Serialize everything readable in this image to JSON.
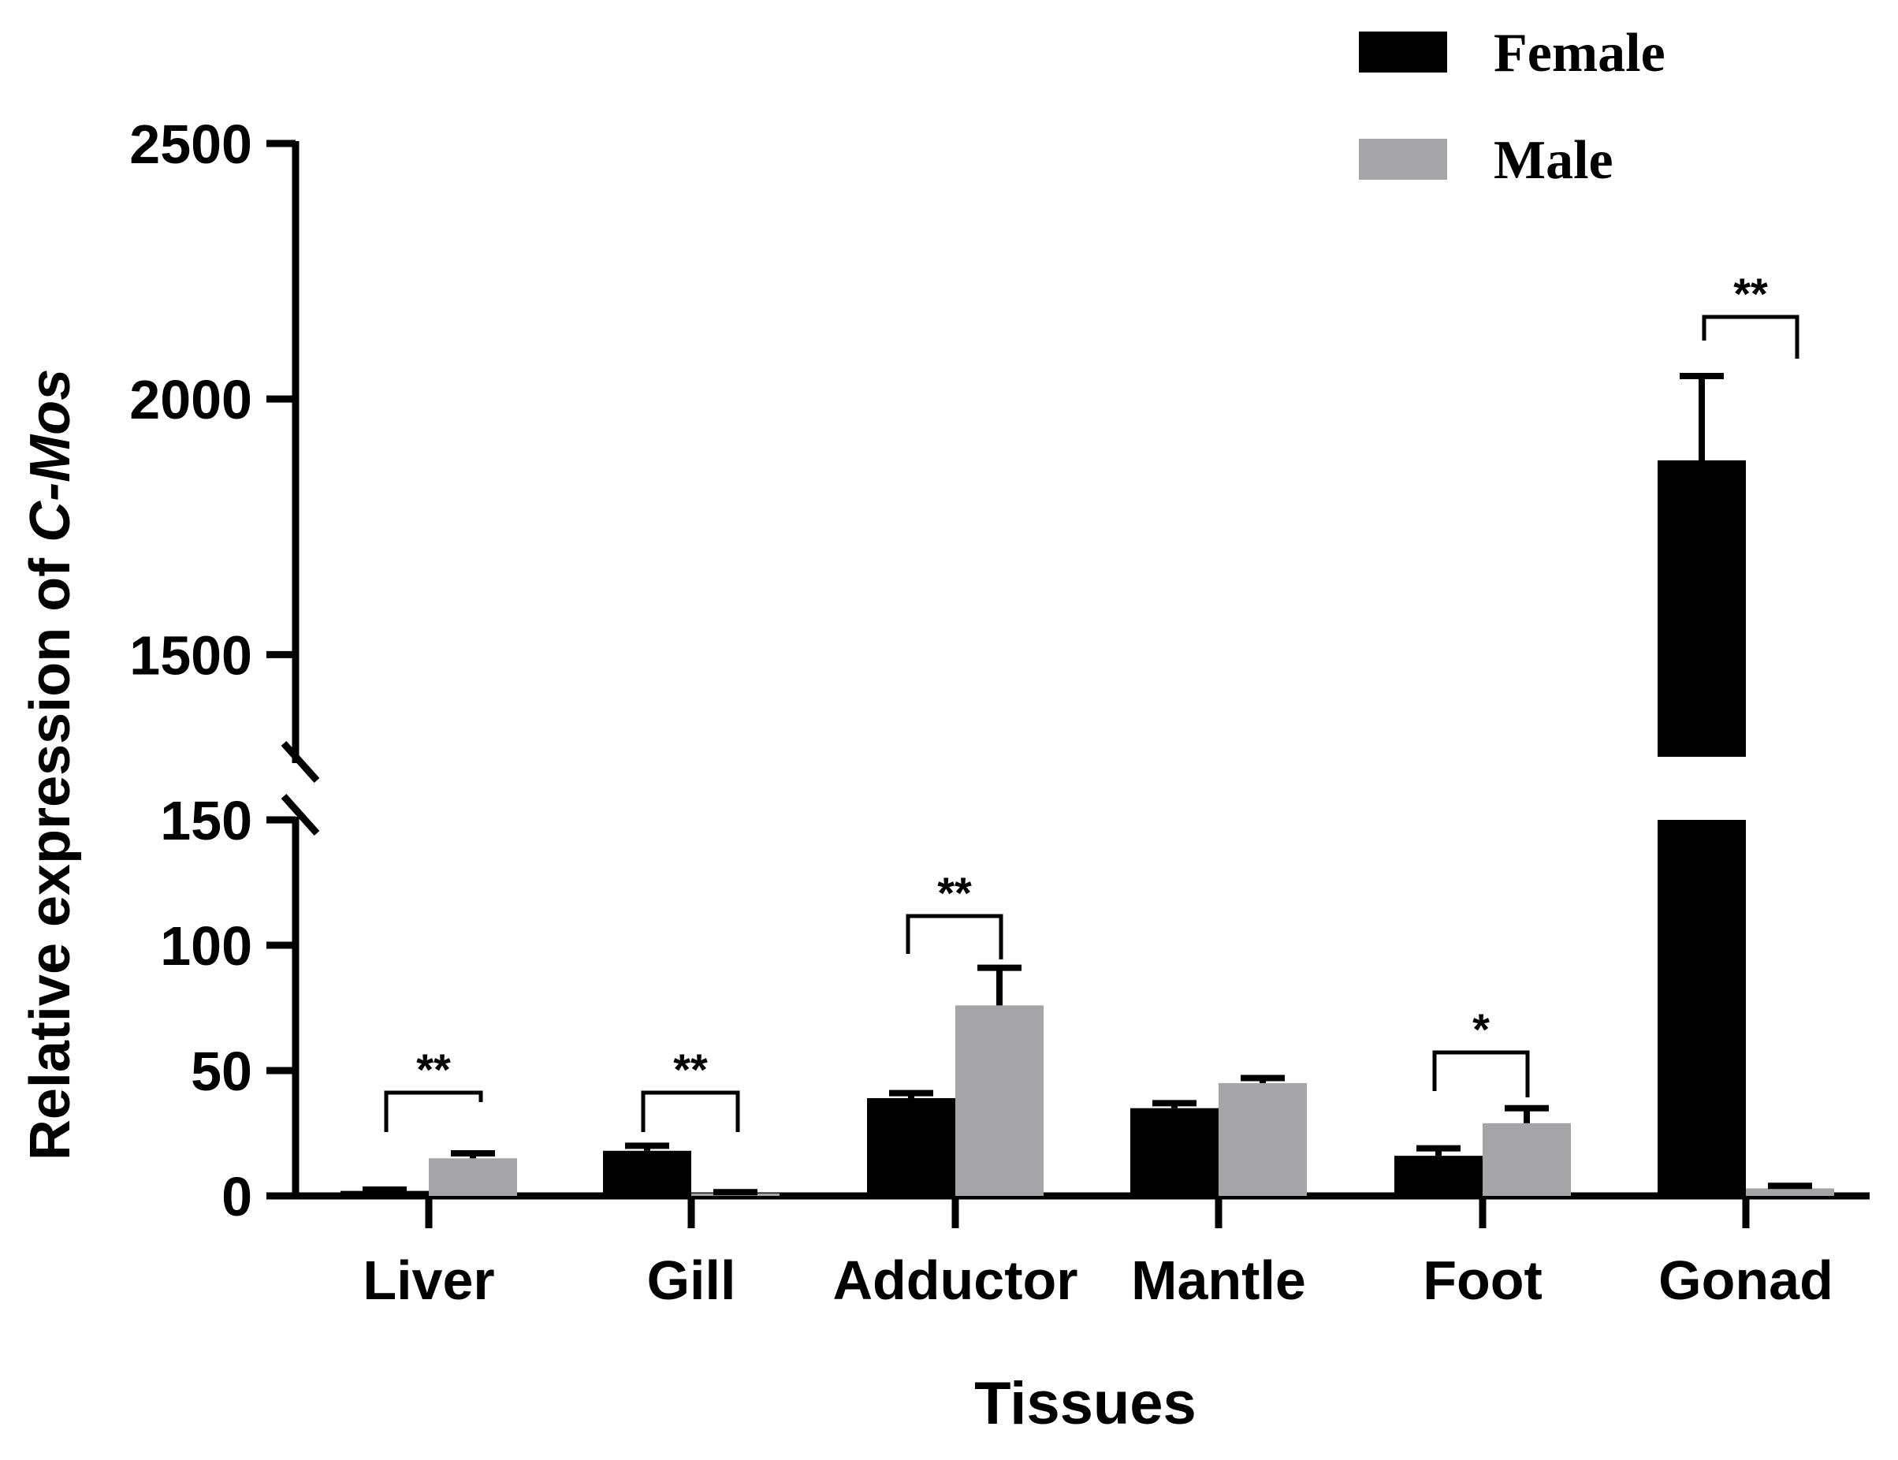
{
  "chart_data": {
    "type": "bar",
    "title": "",
    "xlabel": "Tissues",
    "ylabel_prefix": "Relative expression of ",
    "ylabel_gene": "C-Mos",
    "categories": [
      "Liver",
      "Gill",
      "Adductor",
      "Mantle",
      "Foot",
      "Gonad"
    ],
    "series": [
      {
        "name": "Female",
        "color": "#000000",
        "values": [
          2,
          18,
          39,
          35,
          16,
          1880
        ],
        "errors": [
          0.5,
          2,
          2,
          2,
          3,
          165
        ]
      },
      {
        "name": "Male",
        "color": "#a5a5a8",
        "values": [
          15,
          1,
          76,
          45,
          29,
          3
        ],
        "errors": [
          2,
          0.5,
          15,
          2,
          6,
          1
        ]
      }
    ],
    "axis_break": {
      "lower_range": [
        0,
        150
      ],
      "upper_range": [
        1300,
        2500
      ]
    },
    "lower_ticks": [
      "0",
      "50",
      "100",
      "150"
    ],
    "upper_ticks": [
      "1500",
      "2000",
      "2500"
    ],
    "significance": [
      {
        "category": "Liver",
        "label": "**"
      },
      {
        "category": "Gill",
        "label": "**"
      },
      {
        "category": "Adductor",
        "label": "**"
      },
      {
        "category": "Foot",
        "label": "*"
      },
      {
        "category": "Gonad",
        "label": "**"
      }
    ],
    "legend_position": "top-right"
  }
}
